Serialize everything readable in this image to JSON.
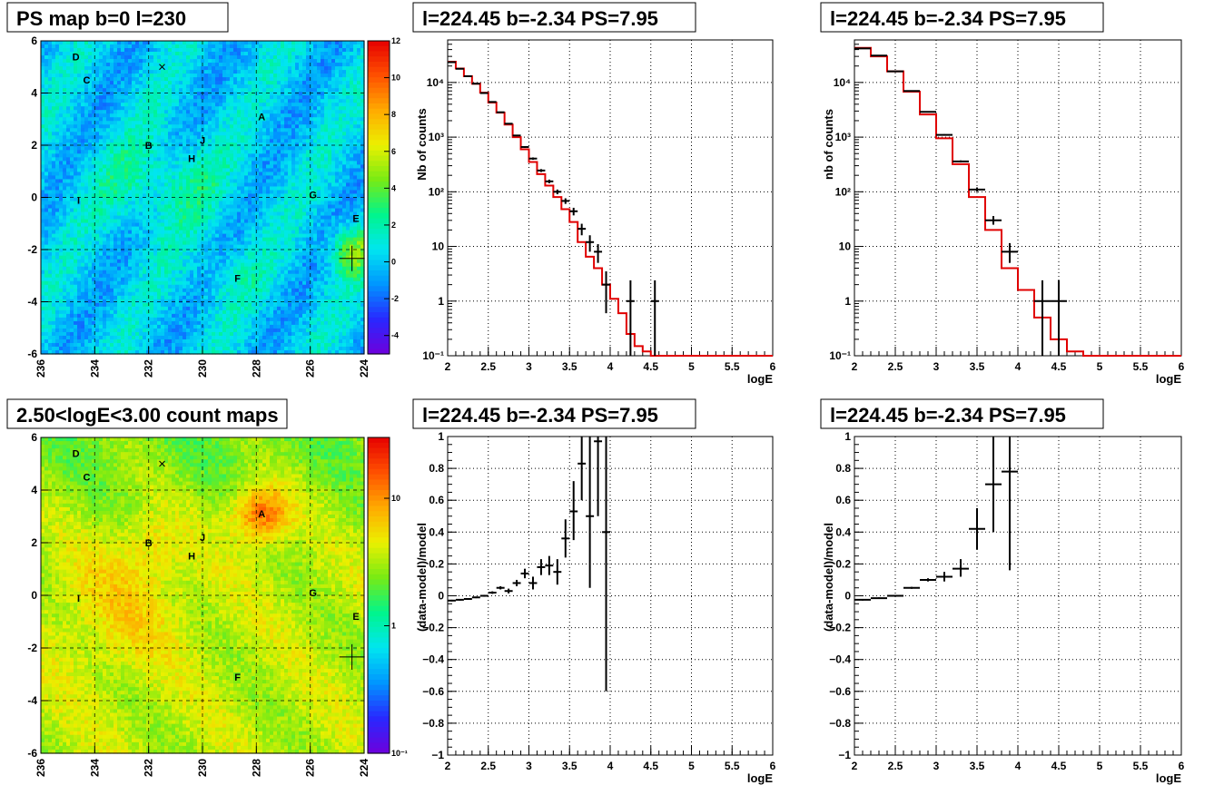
{
  "maps": [
    {
      "title": "PS map b=0 l=230",
      "scale": "blue",
      "colorbar_ticks": [
        "12",
        "10",
        "8",
        "6",
        "4",
        "2",
        "0",
        "-2",
        "-4"
      ],
      "colorbar_range": [
        -5,
        12
      ],
      "x_ticks": [
        "236",
        "234",
        "232",
        "230",
        "228",
        "226",
        "224"
      ],
      "y_ticks": [
        "6",
        "4",
        "2",
        "0",
        "-2",
        "-4",
        "-6"
      ],
      "x_range": [
        236,
        224
      ],
      "y_range": [
        -6,
        6
      ],
      "sources": [
        {
          "name": "D",
          "l": 234.7,
          "b": 5.4
        },
        {
          "name": "C",
          "l": 234.3,
          "b": 4.5
        },
        {
          "name": "A",
          "l": 227.8,
          "b": 3.1
        },
        {
          "name": "B",
          "l": 232.0,
          "b": 2.0
        },
        {
          "name": "J",
          "l": 230.0,
          "b": 2.2
        },
        {
          "name": "H",
          "l": 230.4,
          "b": 1.5
        },
        {
          "name": "I",
          "l": 234.6,
          "b": -0.1
        },
        {
          "name": "G",
          "l": 225.9,
          "b": 0.1
        },
        {
          "name": "E",
          "l": 224.3,
          "b": -0.8
        },
        {
          "name": "F",
          "l": 228.7,
          "b": -3.1
        }
      ]
    },
    {
      "title": "2.50<logE<3.00 count maps",
      "scale": "counts",
      "colorbar_ticks": [
        "10",
        "1",
        "10⁻¹"
      ],
      "colorbar_range": [
        0.1,
        30
      ],
      "x_ticks": [
        "236",
        "234",
        "232",
        "230",
        "228",
        "226",
        "224"
      ],
      "y_ticks": [
        "6",
        "4",
        "2",
        "0",
        "-2",
        "-4",
        "-6"
      ],
      "x_range": [
        236,
        224
      ],
      "y_range": [
        -6,
        6
      ],
      "sources": [
        {
          "name": "D",
          "l": 234.7,
          "b": 5.4
        },
        {
          "name": "C",
          "l": 234.3,
          "b": 4.5
        },
        {
          "name": "A",
          "l": 227.8,
          "b": 3.1
        },
        {
          "name": "B",
          "l": 232.0,
          "b": 2.0
        },
        {
          "name": "J",
          "l": 230.0,
          "b": 2.2
        },
        {
          "name": "H",
          "l": 230.4,
          "b": 1.5
        },
        {
          "name": "I",
          "l": 234.6,
          "b": -0.1
        },
        {
          "name": "G",
          "l": 225.9,
          "b": 0.1
        },
        {
          "name": "E",
          "l": 224.3,
          "b": -0.8
        },
        {
          "name": "F",
          "l": 228.7,
          "b": -3.1
        }
      ]
    }
  ],
  "chart_data": [
    {
      "type": "line",
      "title": "l=224.45 b=-2.34 PS=7.95",
      "xlabel": "logE",
      "ylabel": "Nb of counts",
      "xlim": [
        2,
        6
      ],
      "ylim": [
        0.1,
        60000
      ],
      "yscale": "log",
      "grid": true,
      "x_ticks": [
        "2",
        "2.5",
        "3",
        "3.5",
        "4",
        "4.5",
        "5",
        "5.5",
        "6"
      ],
      "y_ticks": [
        {
          "v": 0.1,
          "t": "10⁻¹"
        },
        {
          "v": 1,
          "t": "1"
        },
        {
          "v": 10,
          "t": "10"
        },
        {
          "v": 100,
          "t": "10²"
        },
        {
          "v": 1000,
          "t": "10³"
        },
        {
          "v": 10000,
          "t": "10⁴"
        }
      ],
      "model_bin_width": 0.1,
      "model": {
        "x": [
          2.0,
          2.1,
          2.2,
          2.3,
          2.4,
          2.5,
          2.6,
          2.7,
          2.8,
          2.9,
          3.0,
          3.1,
          3.2,
          3.3,
          3.4,
          3.5,
          3.6,
          3.7,
          3.8,
          3.9,
          4.0,
          4.1,
          4.2,
          4.3,
          4.4,
          4.5,
          4.6,
          4.7,
          4.8,
          4.9,
          5.0,
          5.1,
          5.2,
          5.3,
          5.4,
          5.5,
          5.6,
          5.7,
          5.8,
          5.9
        ],
        "y": [
          24000,
          18000,
          13000,
          9500,
          6500,
          4300,
          2800,
          1700,
          1000,
          600,
          350,
          210,
          130,
          80,
          48,
          28,
          12,
          6.5,
          4,
          2,
          1.1,
          0.6,
          0.25,
          0.15,
          0.12,
          0.1,
          0.1,
          0.1,
          0.1,
          0.1,
          0.1,
          0.1,
          0.1,
          0.1,
          0.1,
          0.1,
          0.1,
          0.1,
          0.1,
          0.1
        ]
      },
      "data": {
        "x": [
          2.05,
          2.15,
          2.25,
          2.35,
          2.45,
          2.55,
          2.65,
          2.75,
          2.85,
          2.95,
          3.05,
          3.15,
          3.25,
          3.35,
          3.45,
          3.55,
          3.65,
          3.75,
          3.85,
          3.95,
          4.25,
          4.55
        ],
        "y": [
          23500,
          17800,
          13000,
          9500,
          6400,
          4400,
          2850,
          1760,
          1070,
          660,
          405,
          245,
          155,
          100,
          68,
          44,
          21,
          12,
          8,
          2,
          1,
          1
        ],
        "xerr": 0.05,
        "ylo": [
          23300,
          17600,
          12850,
          9400,
          6320,
          4340,
          2800,
          1720,
          1040,
          635,
          385,
          230,
          143,
          90,
          60,
          37,
          16,
          8,
          5,
          0.6,
          0.1,
          0.1
        ],
        "yhi": [
          23700,
          18000,
          13150,
          9600,
          6480,
          4460,
          2900,
          1800,
          1100,
          685,
          425,
          260,
          167,
          110,
          76,
          51,
          26,
          16,
          11,
          3.5,
          2.4,
          2.4
        ]
      }
    },
    {
      "type": "line",
      "title": "l=224.45 b=-2.34 PS=7.95",
      "xlabel": "logE",
      "ylabel": "nb of counts",
      "xlim": [
        2,
        6
      ],
      "ylim": [
        0.1,
        60000
      ],
      "yscale": "log",
      "grid": true,
      "x_ticks": [
        "2",
        "2.5",
        "3",
        "3.5",
        "4",
        "4.5",
        "5",
        "5.5",
        "6"
      ],
      "y_ticks": [
        {
          "v": 0.1,
          "t": "10⁻¹"
        },
        {
          "v": 1,
          "t": "1"
        },
        {
          "v": 10,
          "t": "10"
        },
        {
          "v": 100,
          "t": "10²"
        },
        {
          "v": 1000,
          "t": "10³"
        },
        {
          "v": 10000,
          "t": "10⁴"
        }
      ],
      "model_bin_width": 0.2,
      "model": {
        "x": [
          2.0,
          2.2,
          2.4,
          2.6,
          2.8,
          3.0,
          3.2,
          3.4,
          3.6,
          3.8,
          4.0,
          4.2,
          4.4,
          4.6,
          4.8,
          5.0,
          5.2,
          5.4,
          5.6,
          5.8
        ],
        "y": [
          43000,
          30000,
          16000,
          6800,
          2600,
          950,
          320,
          80,
          20,
          4,
          1.6,
          0.5,
          0.2,
          0.12,
          0.1,
          0.1,
          0.1,
          0.1,
          0.1,
          0.1
        ]
      },
      "data": {
        "x": [
          2.1,
          2.3,
          2.5,
          2.7,
          2.9,
          3.1,
          3.3,
          3.5,
          3.7,
          3.9,
          4.3,
          4.5
        ],
        "y": [
          42000,
          31000,
          16000,
          7000,
          2900,
          1100,
          360,
          110,
          30,
          8,
          1,
          1
        ],
        "xerr": 0.1,
        "ylo": [
          41800,
          30800,
          15850,
          6900,
          2850,
          1070,
          345,
          100,
          25,
          5,
          0.1,
          0.1
        ],
        "yhi": [
          42200,
          31200,
          16150,
          7100,
          2950,
          1130,
          375,
          120,
          36,
          11.5,
          2.4,
          2.4
        ]
      }
    },
    {
      "type": "scatter",
      "title": "l=224.45 b=-2.34 PS=7.95",
      "xlabel": "logE",
      "ylabel": "(data-model)/model",
      "xlim": [
        2,
        6
      ],
      "ylim": [
        -1,
        1
      ],
      "yscale": "linear",
      "grid": true,
      "x_ticks": [
        "2",
        "2.5",
        "3",
        "3.5",
        "4",
        "4.5",
        "5",
        "5.5",
        "6"
      ],
      "y_ticks": [
        {
          "v": -1,
          "t": "−1"
        },
        {
          "v": -0.8,
          "t": "−0.8"
        },
        {
          "v": -0.6,
          "t": "−0.6"
        },
        {
          "v": -0.4,
          "t": "−0.4"
        },
        {
          "v": -0.2,
          "t": "−0.2"
        },
        {
          "v": 0,
          "t": "0"
        },
        {
          "v": 0.2,
          "t": "0.2"
        },
        {
          "v": 0.4,
          "t": "0.4"
        },
        {
          "v": 0.6,
          "t": "0.6"
        },
        {
          "v": 0.8,
          "t": "0.8"
        },
        {
          "v": 1,
          "t": "1"
        }
      ],
      "data": {
        "x": [
          2.05,
          2.15,
          2.25,
          2.35,
          2.45,
          2.55,
          2.65,
          2.75,
          2.85,
          2.95,
          3.05,
          3.15,
          3.25,
          3.35,
          3.45,
          3.55,
          3.65,
          3.75,
          3.85,
          3.95
        ],
        "y": [
          -0.03,
          -0.025,
          -0.02,
          -0.01,
          0.0,
          0.02,
          0.05,
          0.03,
          0.08,
          0.14,
          0.08,
          0.18,
          0.19,
          0.15,
          0.36,
          0.53,
          0.83,
          0.5,
          0.97,
          0.4
        ],
        "xerr": 0.05,
        "ylo": [
          -0.035,
          -0.03,
          -0.025,
          -0.015,
          -0.006,
          0.012,
          0.04,
          0.015,
          0.06,
          0.11,
          0.04,
          0.13,
          0.13,
          0.07,
          0.24,
          0.35,
          0.6,
          0.05,
          0.5,
          -0.6
        ],
        "yhi": [
          -0.025,
          -0.02,
          -0.015,
          -0.005,
          0.006,
          0.028,
          0.06,
          0.045,
          0.1,
          0.17,
          0.12,
          0.23,
          0.25,
          0.23,
          0.48,
          0.72,
          1.0,
          1.0,
          1.0,
          1.0
        ]
      }
    },
    {
      "type": "scatter",
      "title": "l=224.45 b=-2.34 PS=7.95",
      "xlabel": "logE",
      "ylabel": "(data-model)/model",
      "xlim": [
        2,
        6
      ],
      "ylim": [
        -1,
        1
      ],
      "yscale": "linear",
      "grid": true,
      "x_ticks": [
        "2",
        "2.5",
        "3",
        "3.5",
        "4",
        "4.5",
        "5",
        "5.5",
        "6"
      ],
      "y_ticks": [
        {
          "v": -1,
          "t": "−1"
        },
        {
          "v": -0.8,
          "t": "−0.8"
        },
        {
          "v": -0.6,
          "t": "−0.6"
        },
        {
          "v": -0.4,
          "t": "−0.4"
        },
        {
          "v": -0.2,
          "t": "−0.2"
        },
        {
          "v": 0,
          "t": "0"
        },
        {
          "v": 0.2,
          "t": "0.2"
        },
        {
          "v": 0.4,
          "t": "0.4"
        },
        {
          "v": 0.6,
          "t": "0.6"
        },
        {
          "v": 0.8,
          "t": "0.8"
        },
        {
          "v": 1,
          "t": "1"
        }
      ],
      "data": {
        "x": [
          2.1,
          2.3,
          2.5,
          2.7,
          2.9,
          3.1,
          3.3,
          3.5,
          3.7,
          3.9
        ],
        "y": [
          -0.025,
          -0.015,
          0.0,
          0.05,
          0.1,
          0.12,
          0.17,
          0.42,
          0.7,
          0.78
        ],
        "xerr": 0.1,
        "ylo": [
          -0.03,
          -0.02,
          -0.005,
          0.044,
          0.09,
          0.09,
          0.12,
          0.29,
          0.4,
          0.16
        ],
        "yhi": [
          -0.02,
          -0.01,
          0.005,
          0.056,
          0.11,
          0.15,
          0.23,
          0.55,
          1.0,
          1.0
        ]
      }
    }
  ]
}
